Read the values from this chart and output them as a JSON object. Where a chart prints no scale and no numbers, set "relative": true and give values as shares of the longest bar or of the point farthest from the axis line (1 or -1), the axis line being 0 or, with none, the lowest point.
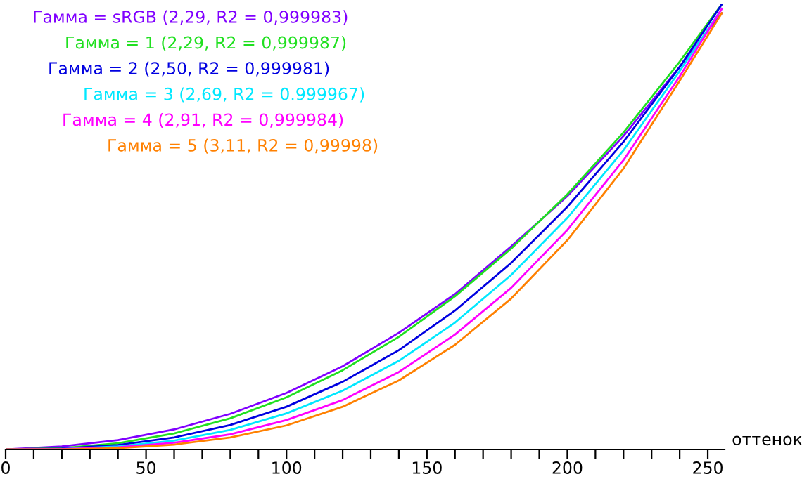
{
  "chart_data": {
    "type": "line",
    "relative": true,
    "xlabel": "оттенок",
    "legend": false,
    "grid": false,
    "marker": "none",
    "line_style": "solid",
    "xlim": [
      0,
      256
    ],
    "xticks": [
      0,
      {
        "value": 10,
        "label": null
      },
      {
        "value": 20,
        "label": null
      },
      {
        "value": 30,
        "label": null
      },
      {
        "value": 40,
        "label": null
      },
      50,
      {
        "value": 60,
        "label": null
      },
      {
        "value": 70,
        "label": null
      },
      {
        "value": 80,
        "label": null
      },
      {
        "value": 90,
        "label": null
      },
      100,
      {
        "value": 110,
        "label": null
      },
      {
        "value": 120,
        "label": null
      },
      {
        "value": 130,
        "label": null
      },
      {
        "value": 140,
        "label": null
      },
      150,
      {
        "value": 160,
        "label": null
      },
      {
        "value": 170,
        "label": null
      },
      {
        "value": 180,
        "label": null
      },
      {
        "value": 190,
        "label": null
      },
      200,
      {
        "value": 210,
        "label": null
      },
      {
        "value": 220,
        "label": null
      },
      {
        "value": 230,
        "label": null
      },
      {
        "value": 240,
        "label": null
      },
      250
    ],
    "x": [
      0,
      20,
      40,
      60,
      80,
      100,
      120,
      140,
      160,
      180,
      200,
      220,
      240,
      255
    ],
    "series": [
      {
        "name": "Гамма = sRGB (2,29, R2 = 0,999983)",
        "color": "#8000ff",
        "values": [
          0,
          0.007,
          0.021,
          0.045,
          0.08,
          0.127,
          0.187,
          0.262,
          0.349,
          0.456,
          0.569,
          0.704,
          0.86,
          0.98
        ]
      },
      {
        "name": "Гамма = 1 (2,29, R2 = 0,999987)",
        "color": "#20e020",
        "values": [
          0,
          0.003,
          0.014,
          0.036,
          0.07,
          0.117,
          0.178,
          0.253,
          0.344,
          0.451,
          0.573,
          0.712,
          0.871,
          1
        ]
      },
      {
        "name": "Гамма = 2 (2,50, R2 = 0,999981)",
        "color": "#0000e0",
        "values": [
          0,
          0.002,
          0.01,
          0.027,
          0.055,
          0.096,
          0.152,
          0.223,
          0.312,
          0.419,
          0.545,
          0.691,
          0.859,
          1
        ]
      },
      {
        "name": "Гамма = 3 (2,69, R2 = 0.999967)",
        "color": "#00e8ff",
        "values": [
          0,
          0.001,
          0.007,
          0.02,
          0.044,
          0.081,
          0.132,
          0.199,
          0.285,
          0.392,
          0.52,
          0.672,
          0.85,
          0.99
        ]
      },
      {
        "name": "Гамма = 4 (2,91, R2 = 0,999984)",
        "color": "#ff00ff",
        "values": [
          0,
          0.001,
          0.005,
          0.015,
          0.034,
          0.066,
          0.111,
          0.174,
          0.258,
          0.363,
          0.493,
          0.65,
          0.838,
          0.99
        ]
      },
      {
        "name": "Гамма = 5 (3,11, R2 = 0,99998)",
        "color": "#ff8000",
        "values": [
          0,
          0,
          0.003,
          0.011,
          0.027,
          0.054,
          0.096,
          0.155,
          0.235,
          0.339,
          0.47,
          0.631,
          0.828,
          0.98
        ]
      }
    ]
  }
}
